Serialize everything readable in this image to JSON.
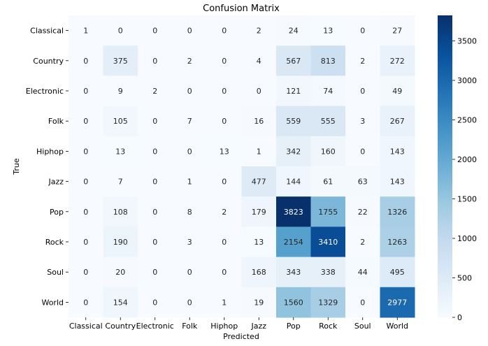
{
  "chart_data": {
    "type": "heatmap",
    "title": "Confusion Matrix",
    "xlabel": "Predicted",
    "ylabel": "True",
    "x_categories": [
      "Classical",
      "Country",
      "Electronic",
      "Folk",
      "Hiphop",
      "Jazz",
      "Pop",
      "Rock",
      "Soul",
      "World"
    ],
    "y_categories": [
      "Classical",
      "Country",
      "Electronic",
      "Folk",
      "Hiphop",
      "Jazz",
      "Pop",
      "Rock",
      "Soul",
      "World"
    ],
    "values": [
      [
        1,
        0,
        0,
        0,
        0,
        2,
        24,
        13,
        0,
        27
      ],
      [
        0,
        375,
        0,
        2,
        0,
        4,
        567,
        813,
        2,
        272
      ],
      [
        0,
        9,
        2,
        0,
        0,
        0,
        121,
        74,
        0,
        49
      ],
      [
        0,
        105,
        0,
        7,
        0,
        16,
        559,
        555,
        3,
        267
      ],
      [
        0,
        13,
        0,
        0,
        13,
        1,
        342,
        160,
        0,
        143
      ],
      [
        0,
        7,
        0,
        1,
        0,
        477,
        144,
        61,
        63,
        143
      ],
      [
        0,
        108,
        0,
        8,
        2,
        179,
        3823,
        1755,
        22,
        1326
      ],
      [
        0,
        190,
        0,
        3,
        0,
        13,
        2154,
        3410,
        2,
        1263
      ],
      [
        0,
        20,
        0,
        0,
        0,
        168,
        343,
        338,
        44,
        495
      ],
      [
        0,
        154,
        0,
        0,
        1,
        19,
        1560,
        1329,
        0,
        2977
      ]
    ],
    "colormap": "Blues",
    "colorbar": {
      "min": 0,
      "max": 3823,
      "ticks": [
        0,
        500,
        1000,
        1500,
        2000,
        2500,
        3000,
        3500
      ]
    },
    "grid": false
  }
}
